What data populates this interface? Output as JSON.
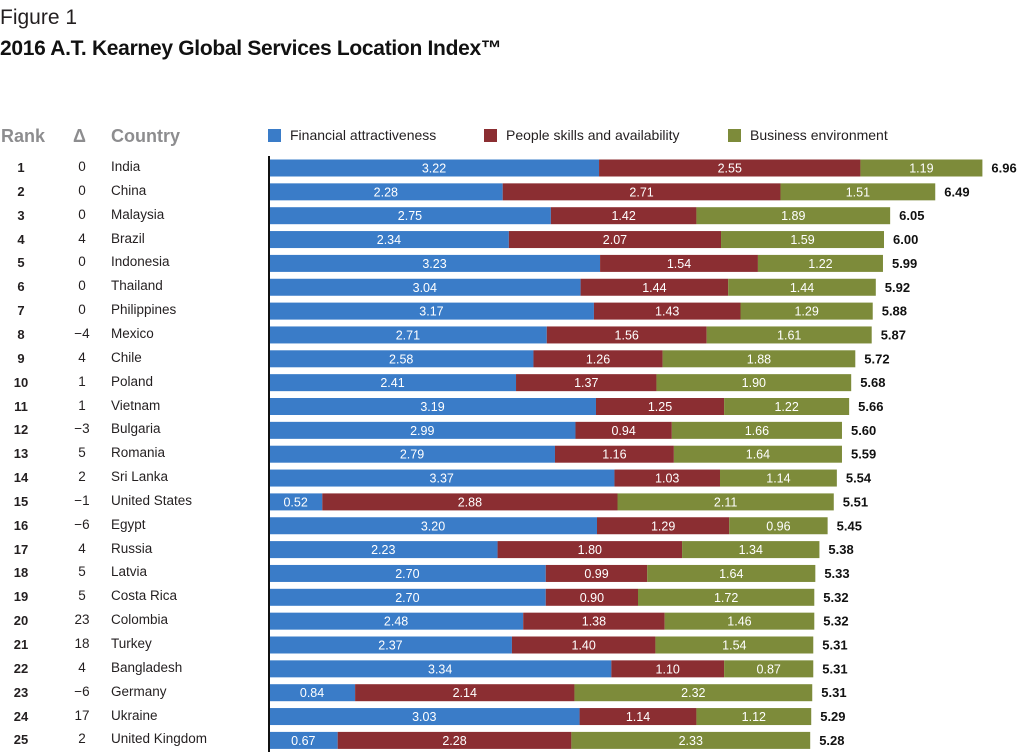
{
  "figure_label": "Figure 1",
  "title": "2016 A.T. Kearney Global Services Location Index™",
  "headers": {
    "rank": "Rank",
    "delta": "Δ",
    "country": "Country"
  },
  "colors": {
    "financial": "#3a7cc8",
    "people": "#8b2e32",
    "business": "#7d8b3a",
    "axis": "#111111"
  },
  "chart_data": {
    "type": "bar",
    "stacked": true,
    "orientation": "horizontal",
    "title": "2016 A.T. Kearney Global Services Location Index™",
    "legend_position": "top",
    "series": [
      {
        "name": "Financial attractiveness",
        "values": [
          3.22,
          2.28,
          2.75,
          2.34,
          3.23,
          3.04,
          3.17,
          2.71,
          2.58,
          2.41,
          3.19,
          2.99,
          2.79,
          3.37,
          0.52,
          3.2,
          2.23,
          2.7,
          2.7,
          2.48,
          2.37,
          3.34,
          0.84,
          3.03,
          0.67
        ]
      },
      {
        "name": "People skills and availability",
        "values": [
          2.55,
          2.71,
          1.42,
          2.07,
          1.54,
          1.44,
          1.43,
          1.56,
          1.26,
          1.37,
          1.25,
          0.94,
          1.16,
          1.03,
          2.88,
          1.29,
          1.8,
          0.99,
          0.9,
          1.38,
          1.4,
          1.1,
          2.14,
          1.14,
          2.28
        ]
      },
      {
        "name": "Business environment",
        "values": [
          1.19,
          1.51,
          1.89,
          1.59,
          1.22,
          1.44,
          1.29,
          1.61,
          1.88,
          1.9,
          1.22,
          1.66,
          1.64,
          1.14,
          2.11,
          0.96,
          1.34,
          1.64,
          1.72,
          1.46,
          1.54,
          0.87,
          2.32,
          1.12,
          2.33
        ]
      }
    ],
    "rows": [
      {
        "rank": "1",
        "delta": "0",
        "country": "India",
        "total": "6.96"
      },
      {
        "rank": "2",
        "delta": "0",
        "country": "China",
        "total": "6.49"
      },
      {
        "rank": "3",
        "delta": "0",
        "country": "Malaysia",
        "total": "6.05"
      },
      {
        "rank": "4",
        "delta": "4",
        "country": "Brazil",
        "total": "6.00"
      },
      {
        "rank": "5",
        "delta": "0",
        "country": "Indonesia",
        "total": "5.99"
      },
      {
        "rank": "6",
        "delta": "0",
        "country": "Thailand",
        "total": "5.92"
      },
      {
        "rank": "7",
        "delta": "0",
        "country": "Philippines",
        "total": "5.88"
      },
      {
        "rank": "8",
        "delta": "−4",
        "country": "Mexico",
        "total": "5.87"
      },
      {
        "rank": "9",
        "delta": "4",
        "country": "Chile",
        "total": "5.72"
      },
      {
        "rank": "10",
        "delta": "1",
        "country": "Poland",
        "total": "5.68"
      },
      {
        "rank": "11",
        "delta": "1",
        "country": "Vietnam",
        "total": "5.66"
      },
      {
        "rank": "12",
        "delta": "−3",
        "country": "Bulgaria",
        "total": "5.60"
      },
      {
        "rank": "13",
        "delta": "5",
        "country": "Romania",
        "total": "5.59"
      },
      {
        "rank": "14",
        "delta": "2",
        "country": "Sri Lanka",
        "total": "5.54"
      },
      {
        "rank": "15",
        "delta": "−1",
        "country": "United States",
        "total": "5.51"
      },
      {
        "rank": "16",
        "delta": "−6",
        "country": "Egypt",
        "total": "5.45"
      },
      {
        "rank": "17",
        "delta": "4",
        "country": "Russia",
        "total": "5.38"
      },
      {
        "rank": "18",
        "delta": "5",
        "country": "Latvia",
        "total": "5.33"
      },
      {
        "rank": "19",
        "delta": "5",
        "country": "Costa Rica",
        "total": "5.32"
      },
      {
        "rank": "20",
        "delta": "23",
        "country": "Colombia",
        "total": "5.32"
      },
      {
        "rank": "21",
        "delta": "18",
        "country": "Turkey",
        "total": "5.31"
      },
      {
        "rank": "22",
        "delta": "4",
        "country": "Bangladesh",
        "total": "5.31"
      },
      {
        "rank": "23",
        "delta": "−6",
        "country": "Germany",
        "total": "5.31"
      },
      {
        "rank": "24",
        "delta": "17",
        "country": "Ukraine",
        "total": "5.29"
      },
      {
        "rank": "25",
        "delta": "2",
        "country": "United Kingdom",
        "total": "5.28"
      }
    ]
  }
}
